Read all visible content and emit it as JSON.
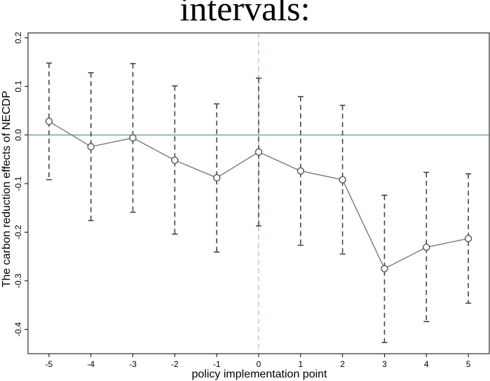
{
  "header": {
    "text": "intervals:"
  },
  "chart_data": {
    "type": "line",
    "title": "",
    "xlabel": "policy implementation point",
    "ylabel": "The carbon reduction effects of NECDP",
    "x": [
      -5,
      -4,
      -3,
      -2,
      -1,
      0,
      1,
      2,
      3,
      4,
      5
    ],
    "xticks": [
      "-5",
      "-4",
      "-3",
      "-2",
      "-1",
      "0",
      "1",
      "2",
      "3",
      "4",
      "5"
    ],
    "yticks": [
      "-0.4",
      "-0.3",
      "-0.2",
      "-0.1",
      "0.0",
      "0.1",
      "0.2"
    ],
    "xlim": [
      -5.5,
      5.5
    ],
    "ylim": [
      -0.45,
      0.21
    ],
    "series": [
      {
        "estimate": [
          0.028,
          -0.024,
          -0.006,
          -0.052,
          -0.088,
          -0.035,
          -0.074,
          -0.092,
          -0.275,
          -0.231,
          -0.213
        ],
        "ci_upper": [
          0.148,
          0.128,
          0.147,
          0.101,
          0.064,
          0.117,
          0.079,
          0.061,
          -0.124,
          -0.077,
          -0.08
        ],
        "ci_lower": [
          -0.092,
          -0.176,
          -0.159,
          -0.204,
          -0.241,
          -0.187,
          -0.227,
          -0.245,
          -0.427,
          -0.384,
          -0.346
        ]
      }
    ],
    "reference_lines": {
      "horizontal_y": 0,
      "vertical_x": 0
    },
    "grid": false,
    "colors": {
      "line": "#7a7a7a",
      "ci": "#444444",
      "hline": "#5f8fa0",
      "vline": "#9cc9b2",
      "axis": "#000000"
    }
  }
}
